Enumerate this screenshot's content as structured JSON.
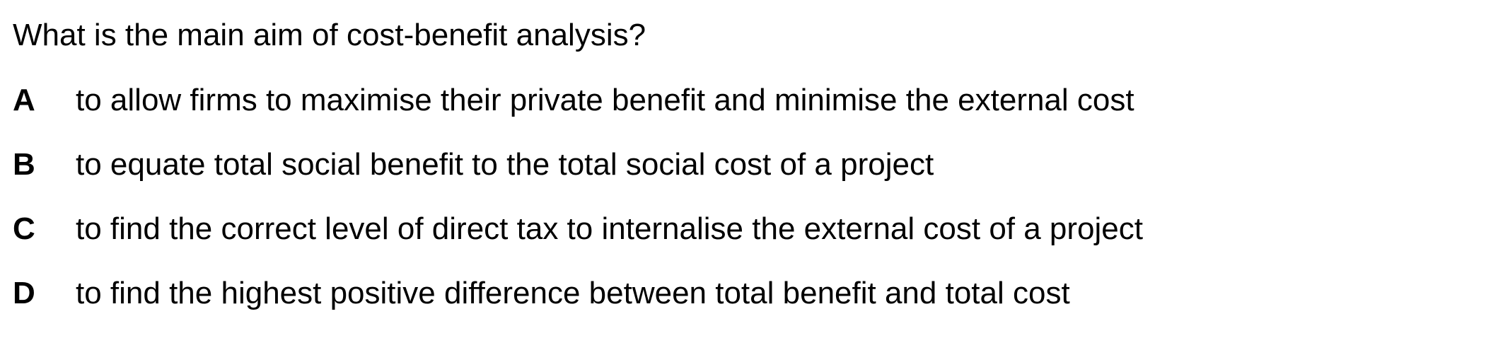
{
  "question": "What is the main aim of cost-benefit analysis?",
  "options": [
    {
      "letter": "A",
      "text": "to allow firms to maximise their private benefit and minimise the external cost"
    },
    {
      "letter": "B",
      "text": "to equate total social benefit to the total social cost of a project"
    },
    {
      "letter": "C",
      "text": "to find the correct level of direct tax to internalise the external cost of a project"
    },
    {
      "letter": "D",
      "text": "to find the highest positive difference between total benefit and total cost"
    }
  ]
}
